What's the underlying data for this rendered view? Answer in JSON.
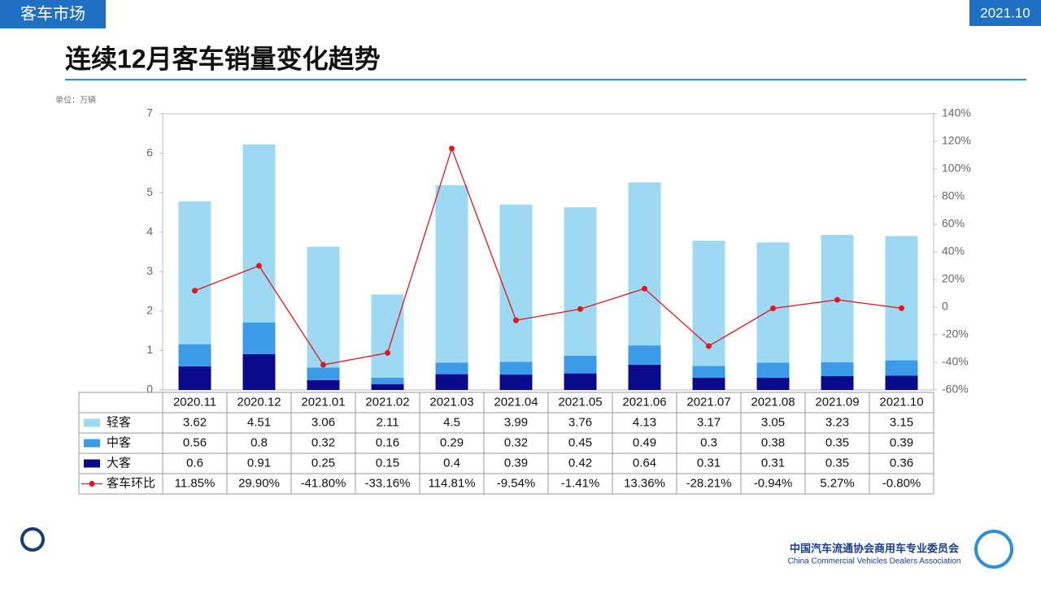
{
  "header": {
    "section": "客车市场",
    "date": "2021.10",
    "title": "连续12月客车销量变化趋势",
    "unit": "单位：万辆"
  },
  "footer": {
    "org_cn": "中国汽车流通协会商用车专业委员会",
    "org_en": "China Commercial Vehicles Dealers Association"
  },
  "chart_data": {
    "type": "bar",
    "stacked": true,
    "categories": [
      "2020.11",
      "2020.12",
      "2021.01",
      "2021.02",
      "2021.03",
      "2021.04",
      "2021.05",
      "2021.06",
      "2021.07",
      "2021.08",
      "2021.09",
      "2021.10"
    ],
    "series": [
      {
        "name": "轻客",
        "color": "#9dd9f3",
        "values": [
          3.62,
          4.51,
          3.06,
          2.11,
          4.5,
          3.99,
          3.76,
          4.13,
          3.17,
          3.05,
          3.23,
          3.15
        ]
      },
      {
        "name": "中客",
        "color": "#3b9be9",
        "values": [
          0.56,
          0.8,
          0.32,
          0.16,
          0.29,
          0.32,
          0.45,
          0.49,
          0.3,
          0.38,
          0.35,
          0.39
        ]
      },
      {
        "name": "大客",
        "color": "#0a0a8c",
        "values": [
          0.6,
          0.91,
          0.25,
          0.15,
          0.4,
          0.39,
          0.42,
          0.64,
          0.31,
          0.31,
          0.35,
          0.36
        ]
      },
      {
        "name": "客车环比",
        "type": "line",
        "axis": "y2",
        "color": "#e8141c",
        "values": [
          11.85,
          29.9,
          -41.8,
          -33.16,
          114.81,
          -9.54,
          -1.41,
          13.36,
          -28.21,
          -0.94,
          5.27,
          -0.8
        ],
        "value_labels": [
          "11.85%",
          "29.90%",
          "-41.80%",
          "-33.16%",
          "114.81%",
          "-9.54%",
          "-1.41%",
          "13.36%",
          "-28.21%",
          "-0.94%",
          "5.27%",
          "-0.80%"
        ]
      }
    ],
    "ylim": [
      0,
      7
    ],
    "yticks": [
      0,
      1,
      2,
      3,
      4,
      5,
      6,
      7
    ],
    "y2lim": [
      -60,
      140
    ],
    "y2ticks": [
      {
        "value": -60,
        "label": "-60%"
      },
      {
        "value": -40,
        "label": "-40%"
      },
      {
        "value": -20,
        "label": "-20%"
      },
      0,
      {
        "value": 20,
        "label": "20%"
      },
      {
        "value": 40,
        "label": "40%"
      },
      {
        "value": 60,
        "label": "60%"
      },
      {
        "value": 80,
        "label": "80%"
      },
      {
        "value": 100,
        "label": "100%"
      },
      {
        "value": 120,
        "label": "120%"
      },
      {
        "value": 140,
        "label": "140%"
      }
    ]
  }
}
